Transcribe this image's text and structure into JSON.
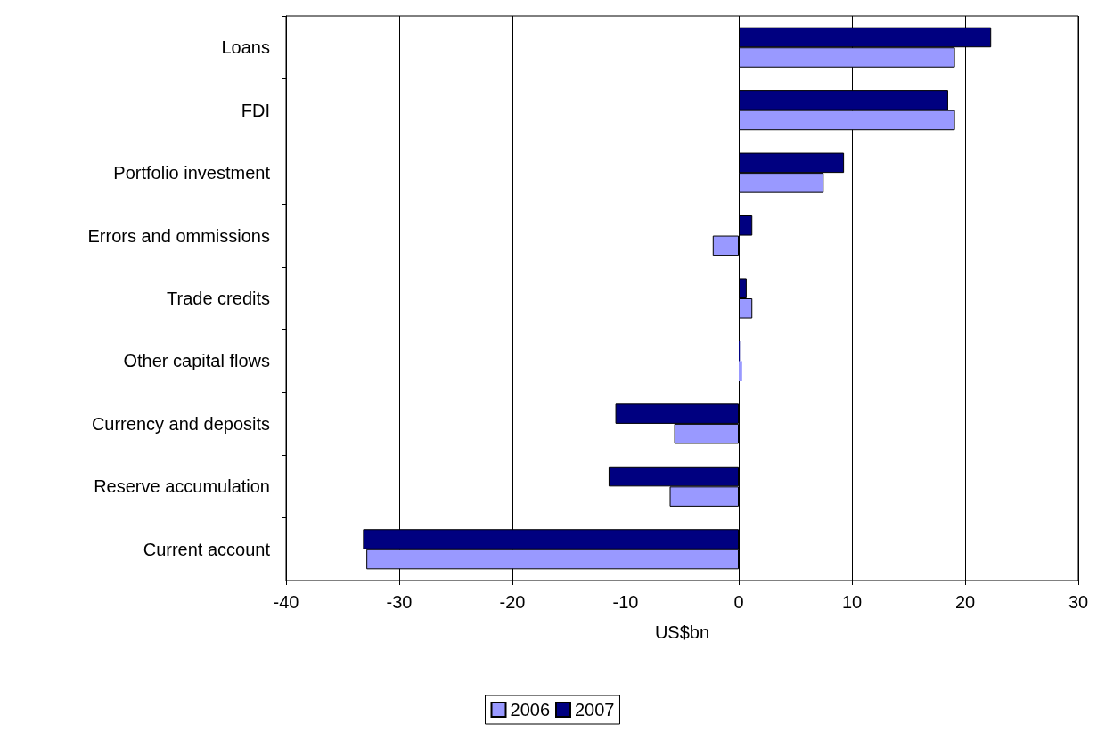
{
  "chart_data": {
    "type": "bar",
    "orientation": "horizontal",
    "xlabel": "US$bn",
    "categories": [
      "Loans",
      "FDI",
      "Portfolio investment",
      "Errors and ommissions",
      "Trade credits",
      "Other capital flows",
      "Currency and deposits",
      "Reserve accumulation",
      "Current account"
    ],
    "series": [
      {
        "name": "2006",
        "color": "#9999ff",
        "values": [
          19.1,
          19.1,
          7.5,
          -2.3,
          1.2,
          0.3,
          -5.7,
          -6.1,
          -32.9
        ]
      },
      {
        "name": "2007",
        "color": "#000080",
        "values": [
          22.3,
          18.5,
          9.3,
          1.2,
          0.7,
          0.1,
          -10.9,
          -11.5,
          -33.2
        ]
      }
    ],
    "xlim": [
      -40,
      30
    ],
    "xticks": [
      -40,
      -30,
      -20,
      -10,
      0,
      10,
      20,
      30
    ],
    "grid": "x",
    "legend": "bottom"
  }
}
